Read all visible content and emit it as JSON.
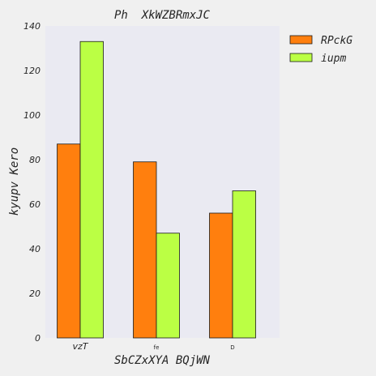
{
  "chart_data": {
    "type": "bar",
    "title": "Ph  XkWZBRmxJC",
    "xlabel": "SbCZxXYA BQjWN",
    "ylabel": "kyupv Kero",
    "categories": [
      "vzT",
      "fe",
      "D"
    ],
    "series": [
      {
        "name": "RPckG",
        "values": [
          87,
          79,
          56
        ],
        "color": "#ff7f0e"
      },
      {
        "name": "iupm",
        "values": [
          133,
          47,
          66
        ],
        "color": "#bbff44"
      }
    ],
    "ylim": [
      0,
      140
    ],
    "yticks": [
      0,
      20,
      40,
      60,
      80,
      100,
      120,
      140
    ],
    "grid": false,
    "legend": "top-right",
    "plot_background": "#eaeaf2"
  }
}
